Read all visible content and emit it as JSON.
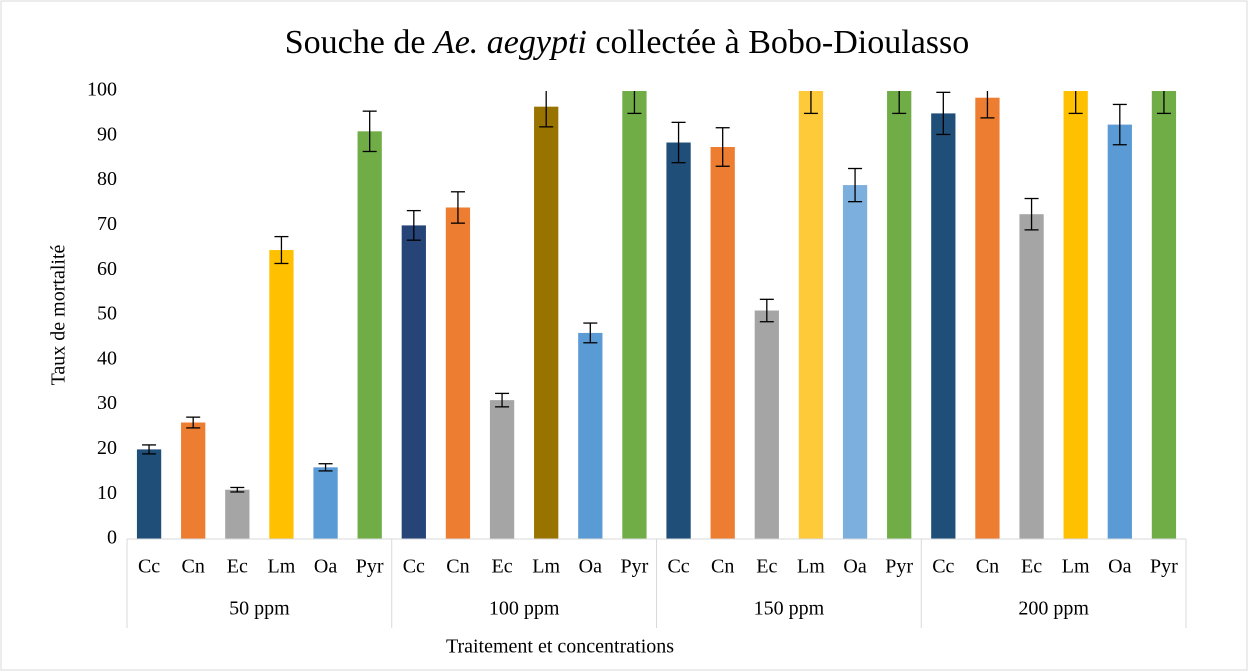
{
  "chart_data": {
    "type": "bar",
    "title": [
      "Souche de ",
      "Ae. aegypti",
      " collectée à Bobo-Dioulasso"
    ],
    "y_label": "Taux de mortalité",
    "x_label": "Traitement et concentrations",
    "groups": [
      "50 ppm",
      "100 ppm",
      "150 ppm",
      "200 ppm"
    ],
    "categories": [
      "Cc",
      "Cn",
      "Ec",
      "Lm",
      "Oa",
      "Pyr",
      "Cc",
      "Cn",
      "Ec",
      "Lm",
      "Oa",
      "Pyr",
      "Cc",
      "Cn",
      "Ec",
      "Lm",
      "Oa",
      "Pyr",
      "Cc",
      "Cn",
      "Ec",
      "Lm",
      "Oa",
      "Pyr"
    ],
    "values": [
      20,
      26,
      11,
      64.5,
      16,
      91,
      70,
      74,
      31,
      96.5,
      46,
      100,
      88.5,
      87.5,
      51,
      100,
      79,
      100,
      95,
      98.5,
      72.5,
      100,
      92.5,
      100
    ],
    "errors": [
      1,
      1.2,
      0.5,
      3,
      0.8,
      4.5,
      3.3,
      3.5,
      1.5,
      4.5,
      2.2,
      5,
      4.5,
      4.3,
      2.5,
      5,
      3.7,
      5,
      4.7,
      4.5,
      3.5,
      5,
      4.5,
      5
    ],
    "colors": [
      "#1f4e79",
      "#ed7d31",
      "#a5a5a5",
      "#ffc000",
      "#5b9bd5",
      "#70ad47",
      "#264478",
      "#ed7d31",
      "#a5a5a5",
      "#997300",
      "#5b9bd5",
      "#70ad47",
      "#1f4e79",
      "#ed7d31",
      "#a5a5a5",
      "#ffca3a",
      "#7cafdd",
      "#70ad47",
      "#1f4e79",
      "#ed7d31",
      "#a5a5a5",
      "#ffc000",
      "#5b9bd5",
      "#70ad47"
    ],
    "ylim": [
      0,
      100
    ],
    "yticks": [
      0,
      10,
      20,
      30,
      40,
      50,
      60,
      70,
      80,
      90,
      100
    ],
    "grid": false
  }
}
